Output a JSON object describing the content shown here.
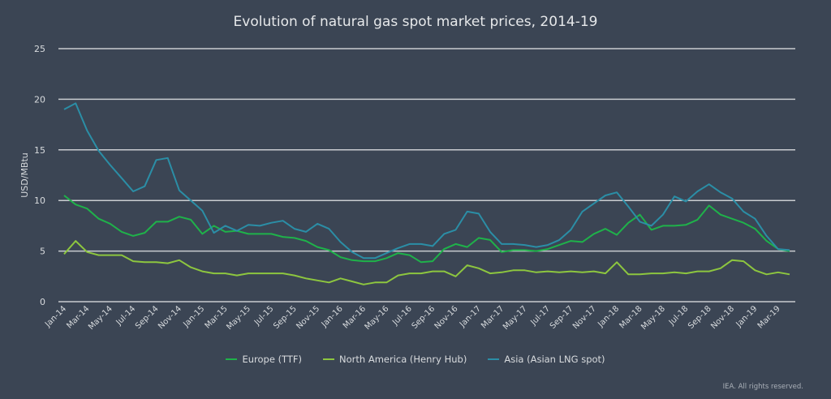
{
  "chart_data": {
    "type": "line",
    "title": "Evolution of natural gas spot market prices, 2014-19",
    "ylabel": "USD/MBtu",
    "xlabel": "",
    "ylim": [
      0,
      25
    ],
    "yticks": [
      0,
      5,
      10,
      15,
      20,
      25
    ],
    "grid": true,
    "legend_position": "bottom",
    "x_tick_labels": [
      "Jan-14",
      "Mar-14",
      "May-14",
      "Jul-14",
      "Sep-14",
      "Nov-14",
      "Jan-15",
      "Mar-15",
      "May-15",
      "Jul-15",
      "Sep-15",
      "Nov-15",
      "Jan-16",
      "Mar-16",
      "May-16",
      "Jul-16",
      "Sep-16",
      "Nov-16",
      "Jan-17",
      "Mar-17",
      "May-17",
      "Jul-17",
      "Sep-17",
      "Nov-17",
      "Jan-18",
      "Mar-18",
      "May-18",
      "Jul-18",
      "Sep-18",
      "Nov-18",
      "Jan-19",
      "Mar-19"
    ],
    "x": [
      "Jan-14",
      "Feb-14",
      "Mar-14",
      "Apr-14",
      "May-14",
      "Jun-14",
      "Jul-14",
      "Aug-14",
      "Sep-14",
      "Oct-14",
      "Nov-14",
      "Dec-14",
      "Jan-15",
      "Feb-15",
      "Mar-15",
      "Apr-15",
      "May-15",
      "Jun-15",
      "Jul-15",
      "Aug-15",
      "Sep-15",
      "Oct-15",
      "Nov-15",
      "Dec-15",
      "Jan-16",
      "Feb-16",
      "Mar-16",
      "Apr-16",
      "May-16",
      "Jun-16",
      "Jul-16",
      "Aug-16",
      "Sep-16",
      "Oct-16",
      "Nov-16",
      "Dec-16",
      "Jan-17",
      "Feb-17",
      "Mar-17",
      "Apr-17",
      "May-17",
      "Jun-17",
      "Jul-17",
      "Aug-17",
      "Sep-17",
      "Oct-17",
      "Nov-17",
      "Dec-17",
      "Jan-18",
      "Feb-18",
      "Mar-18",
      "Apr-18",
      "May-18",
      "Jun-18",
      "Jul-18",
      "Aug-18",
      "Sep-18",
      "Oct-18",
      "Nov-18",
      "Dec-18",
      "Jan-19",
      "Feb-19",
      "Mar-19",
      "Apr-19"
    ],
    "series": [
      {
        "name": "Europe (TTF)",
        "color": "#1fb24a",
        "values": [
          10.5,
          9.6,
          9.2,
          8.2,
          7.7,
          6.9,
          6.5,
          6.8,
          7.9,
          7.9,
          8.4,
          8.1,
          6.7,
          7.5,
          6.9,
          7.0,
          6.7,
          6.7,
          6.7,
          6.4,
          6.3,
          6.0,
          5.4,
          5.1,
          4.4,
          4.1,
          4.0,
          4.0,
          4.3,
          4.8,
          4.6,
          3.9,
          4.0,
          5.2,
          5.7,
          5.4,
          6.3,
          6.1,
          4.9,
          5.1,
          5.1,
          5.0,
          5.2,
          5.6,
          6.0,
          5.9,
          6.7,
          7.2,
          6.6,
          7.8,
          8.6,
          7.1,
          7.5,
          7.5,
          7.6,
          8.1,
          9.5,
          8.6,
          8.2,
          7.8,
          7.2,
          6.0,
          5.2,
          5.0
        ]
      },
      {
        "name": "North America (Henry Hub)",
        "color": "#8dc63f",
        "values": [
          4.7,
          6.0,
          4.9,
          4.6,
          4.6,
          4.6,
          4.0,
          3.9,
          3.9,
          3.8,
          4.1,
          3.4,
          3.0,
          2.8,
          2.8,
          2.6,
          2.8,
          2.8,
          2.8,
          2.8,
          2.6,
          2.3,
          2.1,
          1.9,
          2.3,
          2.0,
          1.7,
          1.9,
          1.9,
          2.6,
          2.8,
          2.8,
          3.0,
          3.0,
          2.5,
          3.6,
          3.3,
          2.8,
          2.9,
          3.1,
          3.1,
          2.9,
          3.0,
          2.9,
          3.0,
          2.9,
          3.0,
          2.8,
          3.9,
          2.7,
          2.7,
          2.8,
          2.8,
          2.9,
          2.8,
          3.0,
          3.0,
          3.3,
          4.1,
          4.0,
          3.1,
          2.7,
          2.9,
          2.7
        ]
      },
      {
        "name": "Asia (Asian LNG spot)",
        "color": "#2b8ea6",
        "values": [
          19.0,
          19.6,
          16.9,
          14.9,
          13.5,
          12.2,
          10.9,
          11.4,
          14.0,
          14.2,
          11.0,
          10.0,
          9.0,
          6.8,
          7.5,
          7.0,
          7.6,
          7.5,
          7.8,
          8.0,
          7.2,
          6.9,
          7.7,
          7.2,
          5.9,
          4.9,
          4.3,
          4.3,
          4.8,
          5.3,
          5.7,
          5.7,
          5.5,
          6.7,
          7.1,
          8.9,
          8.7,
          6.9,
          5.7,
          5.7,
          5.6,
          5.4,
          5.6,
          6.1,
          7.1,
          8.9,
          9.7,
          10.5,
          10.8,
          9.4,
          7.9,
          7.5,
          8.6,
          10.4,
          9.9,
          10.9,
          11.6,
          10.8,
          10.2,
          8.9,
          8.2,
          6.5,
          5.2,
          5.1
        ]
      }
    ]
  },
  "footer": "IEA. All rights reserved."
}
